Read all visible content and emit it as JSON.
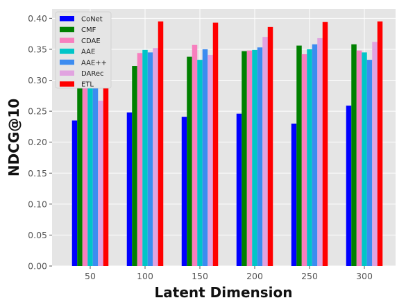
{
  "chart_data": {
    "type": "bar",
    "title": "",
    "xlabel": "Latent Dimension",
    "ylabel": "NDCG@10",
    "categories": [
      "50",
      "100",
      "150",
      "200",
      "250",
      "300"
    ],
    "ylim": [
      0,
      0.415
    ],
    "yticks": [
      "0.00",
      "0.05",
      "0.10",
      "0.15",
      "0.20",
      "0.25",
      "0.30",
      "0.35",
      "0.40"
    ],
    "grid": true,
    "legend_position": "top-left",
    "series": [
      {
        "name": "CoNet",
        "color": "#0000ff",
        "values": [
          0.235,
          0.248,
          0.241,
          0.246,
          0.23,
          0.259
        ]
      },
      {
        "name": "CMF",
        "color": "#008000",
        "values": [
          0.293,
          0.323,
          0.338,
          0.347,
          0.356,
          0.358
        ]
      },
      {
        "name": "CDAE",
        "color": "#f77fbe",
        "values": [
          0.356,
          0.344,
          0.357,
          0.348,
          0.342,
          0.348
        ]
      },
      {
        "name": "AAE",
        "color": "#00c5c8",
        "values": [
          0.354,
          0.349,
          0.333,
          0.349,
          0.35,
          0.345
        ]
      },
      {
        "name": "AAE++",
        "color": "#3c8cf0",
        "values": [
          0.356,
          0.345,
          0.35,
          0.353,
          0.358,
          0.333
        ]
      },
      {
        "name": "DARec",
        "color": "#e1a3e0",
        "values": [
          0.267,
          0.352,
          0.341,
          0.37,
          0.368,
          0.362
        ]
      },
      {
        "name": "ETL",
        "color": "#ff0000",
        "values": [
          0.38,
          0.395,
          0.393,
          0.386,
          0.394,
          0.395
        ]
      }
    ]
  }
}
